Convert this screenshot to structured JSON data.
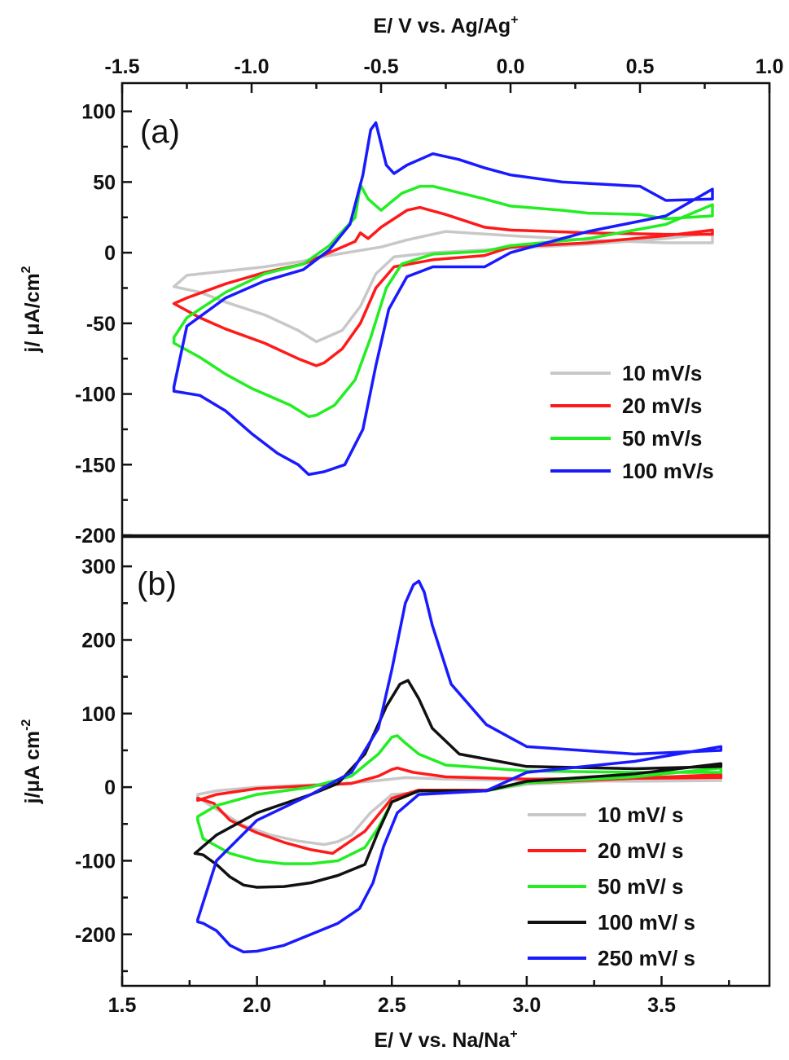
{
  "chart_data": [
    {
      "id": "a",
      "type": "line",
      "panel_label": "(a)",
      "xlabel": "E/ V vs. Ag/Ag",
      "xlabel_superscript": "+",
      "x_axis_position": "top",
      "ylabel": "j/ μA/cm",
      "ylabel_superscript": "2",
      "xlim": [
        -1.5,
        1.0
      ],
      "ylim": [
        -200,
        120
      ],
      "xticks": [
        -1.5,
        -1.0,
        -0.5,
        0.0,
        0.5,
        1.0
      ],
      "xtick_labels": [
        "-1.5",
        "-1.0",
        "-0.5",
        "0.0",
        "0.5",
        "1.0"
      ],
      "yticks": [
        -200,
        -150,
        -100,
        -50,
        0,
        50,
        100
      ],
      "ytick_labels": [
        "-200",
        "-150",
        "-100",
        "-50",
        "0",
        "50",
        "100"
      ],
      "grid": false,
      "legend_position": "bottom-right",
      "series": [
        {
          "name": "10 mV/s",
          "color": "#c8c8c8",
          "x": [
            -0.1,
            -0.3,
            -0.45,
            -0.52,
            -0.58,
            -0.65,
            -0.75,
            -0.82,
            -0.95,
            -1.1,
            -1.2,
            -1.3,
            -1.25,
            -1.1,
            -0.95,
            -0.8,
            -0.7,
            -0.6,
            -0.5,
            -0.4,
            -0.25,
            0.0,
            0.3,
            0.6,
            0.78,
            0.78,
            0.6,
            0.3,
            0.0,
            -0.1
          ],
          "y": [
            2,
            0,
            -3,
            -15,
            -38,
            -55,
            -63,
            -55,
            -44,
            -35,
            -28,
            -24,
            -16,
            -13,
            -10,
            -6,
            -2,
            1,
            4,
            9,
            15,
            12,
            9,
            7,
            7,
            14,
            10,
            6,
            3,
            2
          ]
        },
        {
          "name": "20 mV/s",
          "color": "#ff1a1a",
          "x": [
            -0.1,
            -0.3,
            -0.45,
            -0.52,
            -0.58,
            -0.65,
            -0.72,
            -0.75,
            -0.82,
            -0.95,
            -1.1,
            -1.2,
            -1.3,
            -1.25,
            -1.1,
            -0.95,
            -0.8,
            -0.7,
            -0.6,
            -0.58,
            -0.55,
            -0.5,
            -0.4,
            -0.35,
            -0.25,
            -0.1,
            0.0,
            0.3,
            0.6,
            0.78,
            0.78,
            0.6,
            0.3,
            0.0,
            -0.1
          ],
          "y": [
            -2,
            -5,
            -10,
            -25,
            -50,
            -68,
            -78,
            -80,
            -75,
            -64,
            -54,
            -46,
            -36,
            -32,
            -22,
            -14,
            -8,
            0,
            8,
            14,
            10,
            18,
            30,
            32,
            27,
            18,
            16,
            14,
            13,
            13,
            16,
            12,
            7,
            4,
            -2
          ]
        },
        {
          "name": "50 mV/s",
          "color": "#22ee22",
          "x": [
            -0.1,
            -0.3,
            -0.42,
            -0.48,
            -0.54,
            -0.6,
            -0.68,
            -0.75,
            -0.78,
            -0.85,
            -1.0,
            -1.1,
            -1.2,
            -1.3,
            -1.3,
            -1.25,
            -1.1,
            -0.95,
            -0.8,
            -0.7,
            -0.6,
            -0.58,
            -0.55,
            -0.5,
            -0.42,
            -0.35,
            -0.3,
            -0.1,
            0.0,
            0.2,
            0.3,
            0.5,
            0.6,
            0.78,
            0.78,
            0.6,
            0.3,
            0.0,
            -0.1
          ],
          "y": [
            1,
            -1,
            -8,
            -25,
            -60,
            -90,
            -108,
            -115,
            -116,
            -108,
            -96,
            -86,
            -74,
            -64,
            -60,
            -46,
            -28,
            -15,
            -8,
            5,
            25,
            48,
            38,
            30,
            42,
            47,
            47,
            38,
            33,
            30,
            28,
            27,
            24,
            26,
            34,
            20,
            10,
            5,
            1
          ]
        },
        {
          "name": "100 mV/s",
          "color": "#1a1aff",
          "x": [
            -0.1,
            -0.3,
            -0.4,
            -0.47,
            -0.52,
            -0.57,
            -0.64,
            -0.72,
            -0.78,
            -0.82,
            -0.9,
            -1.0,
            -1.1,
            -1.2,
            -1.3,
            -1.3,
            -1.25,
            -1.1,
            -0.95,
            -0.8,
            -0.7,
            -0.62,
            -0.57,
            -0.54,
            -0.52,
            -0.48,
            -0.45,
            -0.4,
            -0.3,
            -0.2,
            -0.1,
            0.0,
            0.2,
            0.4,
            0.5,
            0.6,
            0.78,
            0.78,
            0.6,
            0.3,
            0.0,
            -0.1
          ],
          "y": [
            -10,
            -10,
            -17,
            -40,
            -80,
            -125,
            -150,
            -155,
            -157,
            -150,
            -142,
            -128,
            -112,
            -101,
            -98,
            -95,
            -52,
            -32,
            -20,
            -12,
            2,
            20,
            55,
            87,
            92,
            62,
            56,
            62,
            70,
            66,
            60,
            55,
            50,
            48,
            47,
            37,
            38,
            45,
            26,
            15,
            0,
            -10
          ]
        }
      ]
    },
    {
      "id": "b",
      "type": "line",
      "panel_label": "(b)",
      "xlabel": "E/ V vs. Na/Na",
      "xlabel_superscript": "+",
      "x_axis_position": "bottom",
      "ylabel": "j/μA cm",
      "ylabel_superscript": "-2",
      "xlim": [
        1.5,
        3.9
      ],
      "ylim": [
        -270,
        340
      ],
      "xticks": [
        1.5,
        2.0,
        2.5,
        3.0,
        3.5
      ],
      "xtick_labels": [
        "1.5",
        "2.0",
        "2.5",
        "3.0",
        "3.5"
      ],
      "yticks": [
        -200,
        -100,
        0,
        100,
        200,
        300
      ],
      "ytick_labels": [
        "-200",
        "-100",
        "0",
        "100",
        "200",
        "300"
      ],
      "grid": false,
      "legend_position": "bottom-right",
      "series": [
        {
          "name": "10 mV/ s",
          "color": "#c8c8c8",
          "x": [
            2.85,
            2.7,
            2.5,
            2.42,
            2.35,
            2.3,
            2.25,
            2.15,
            2.05,
            1.95,
            1.85,
            1.78,
            1.78,
            1.85,
            2.0,
            2.2,
            2.35,
            2.45,
            2.55,
            2.7,
            3.0,
            3.4,
            3.72,
            3.72,
            3.4,
            3.0,
            2.85
          ],
          "y": [
            -5,
            -5,
            -10,
            -35,
            -65,
            -74,
            -78,
            -73,
            -65,
            -52,
            -30,
            -14,
            -10,
            -5,
            0,
            3,
            6,
            9,
            13,
            11,
            9,
            8,
            9,
            14,
            10,
            4,
            -5
          ]
        },
        {
          "name": "20 mV/ s",
          "color": "#ff1a1a",
          "x": [
            2.85,
            2.6,
            2.5,
            2.4,
            2.3,
            2.28,
            2.2,
            2.1,
            2.0,
            1.9,
            1.84,
            1.78,
            1.78,
            1.85,
            2.0,
            2.2,
            2.35,
            2.45,
            2.5,
            2.52,
            2.58,
            2.7,
            3.0,
            3.4,
            3.72,
            3.72,
            3.4,
            3.0,
            2.85
          ],
          "y": [
            -4,
            -4,
            -15,
            -60,
            -85,
            -90,
            -85,
            -75,
            -62,
            -45,
            -22,
            -15,
            -18,
            -10,
            -2,
            2,
            5,
            15,
            24,
            26,
            20,
            14,
            11,
            12,
            13,
            17,
            12,
            6,
            -4
          ]
        },
        {
          "name": "50 mV/ s",
          "color": "#22ee22",
          "x": [
            2.85,
            2.6,
            2.5,
            2.45,
            2.4,
            2.3,
            2.2,
            2.1,
            2.0,
            1.9,
            1.8,
            1.78,
            1.78,
            1.85,
            2.0,
            2.2,
            2.35,
            2.45,
            2.5,
            2.52,
            2.55,
            2.6,
            2.7,
            3.0,
            3.4,
            3.72,
            3.72,
            3.4,
            3.0,
            2.85
          ],
          "y": [
            -5,
            -5,
            -20,
            -55,
            -82,
            -100,
            -104,
            -104,
            -100,
            -90,
            -70,
            -45,
            -40,
            -25,
            -10,
            0,
            15,
            45,
            68,
            70,
            60,
            45,
            30,
            22,
            20,
            20,
            26,
            14,
            6,
            -5
          ]
        },
        {
          "name": "100 mV/ s",
          "color": "#111111",
          "x": [
            2.85,
            2.6,
            2.5,
            2.45,
            2.4,
            2.3,
            2.2,
            2.1,
            2.0,
            1.95,
            1.9,
            1.85,
            1.8,
            1.77,
            1.77,
            1.85,
            2.0,
            2.2,
            2.3,
            2.4,
            2.48,
            2.53,
            2.56,
            2.6,
            2.65,
            2.75,
            3.0,
            3.4,
            3.72,
            3.72,
            3.4,
            3.0,
            2.85
          ],
          "y": [
            -5,
            -5,
            -20,
            -60,
            -105,
            -120,
            -130,
            -135,
            -136,
            -133,
            -122,
            -105,
            -92,
            -90,
            -90,
            -65,
            -35,
            -10,
            5,
            45,
            110,
            140,
            145,
            120,
            80,
            45,
            28,
            25,
            28,
            32,
            18,
            8,
            -5
          ]
        },
        {
          "name": "250 mV/ s",
          "color": "#1a1aff",
          "x": [
            2.85,
            2.6,
            2.52,
            2.47,
            2.43,
            2.38,
            2.3,
            2.2,
            2.1,
            2.0,
            1.95,
            1.9,
            1.85,
            1.8,
            1.78,
            1.78,
            1.85,
            2.0,
            2.2,
            2.35,
            2.45,
            2.5,
            2.55,
            2.58,
            2.6,
            2.62,
            2.65,
            2.72,
            2.85,
            3.0,
            3.4,
            3.72,
            3.72,
            3.4,
            3.0,
            2.85
          ],
          "y": [
            -5,
            -10,
            -35,
            -80,
            -130,
            -165,
            -185,
            -200,
            -215,
            -223,
            -224,
            -215,
            -195,
            -185,
            -183,
            -180,
            -100,
            -45,
            -10,
            20,
            80,
            160,
            250,
            275,
            280,
            265,
            220,
            140,
            85,
            55,
            45,
            50,
            55,
            35,
            20,
            -5
          ]
        }
      ]
    }
  ]
}
